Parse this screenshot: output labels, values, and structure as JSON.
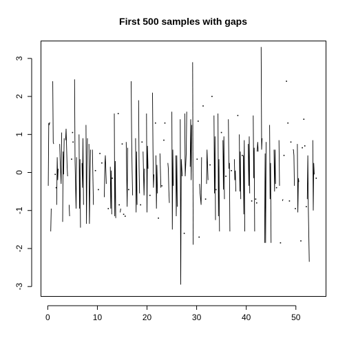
{
  "chart_data": {
    "type": "line",
    "title": "First 500 samples with gaps",
    "xlabel": "",
    "ylabel": "",
    "xlim": [
      -1.3,
      56.0
    ],
    "ylim": [
      -3.25,
      3.45
    ],
    "x_ticks": [
      0,
      10,
      20,
      30,
      40,
      50
    ],
    "y_ticks": [
      -3,
      -2,
      -1,
      0,
      1,
      2,
      3
    ],
    "grid": false,
    "legend": "none",
    "segments": [
      [
        [
          0.1,
          -0.35
        ],
        [
          0.2,
          1.3
        ],
        [
          0.3,
          1.25
        ],
        [
          0.4,
          1.32
        ]
      ],
      [
        [
          0.6,
          -1.55
        ],
        [
          0.7,
          -0.95
        ]
      ],
      [
        [
          1.0,
          2.4
        ],
        [
          1.1,
          0.8
        ],
        [
          1.2,
          0.75
        ]
      ],
      [
        [
          1.8,
          -0.85
        ],
        [
          1.9,
          0.4
        ],
        [
          2.0,
          -0.2
        ],
        [
          2.1,
          0.1
        ]
      ],
      [
        [
          2.4,
          0.75
        ],
        [
          2.5,
          0.3
        ],
        [
          2.7,
          -0.3
        ],
        [
          2.8,
          1.05
        ]
      ],
      [
        [
          3.0,
          -1.3
        ],
        [
          3.1,
          0.55
        ],
        [
          3.2,
          -0.05
        ],
        [
          3.3,
          0.9
        ]
      ],
      [
        [
          3.6,
          0.85
        ],
        [
          3.7,
          1.15
        ],
        [
          3.9,
          0.15
        ],
        [
          4.0,
          -0.1
        ]
      ],
      [
        [
          4.3,
          -0.85
        ],
        [
          4.4,
          -1.15
        ]
      ],
      [
        [
          5.4,
          2.45
        ],
        [
          5.5,
          0.3
        ],
        [
          5.7,
          -0.95
        ],
        [
          5.8,
          0.4
        ]
      ],
      [
        [
          6.3,
          1.0
        ],
        [
          6.4,
          -0.95
        ],
        [
          6.5,
          0.35
        ],
        [
          6.6,
          -1.45
        ]
      ],
      [
        [
          6.9,
          0.25
        ],
        [
          7.0,
          -0.4
        ],
        [
          7.1,
          0.9
        ],
        [
          7.2,
          -0.85
        ]
      ],
      [
        [
          7.7,
          1.25
        ],
        [
          7.8,
          -1.35
        ],
        [
          7.9,
          0.15
        ],
        [
          8.0,
          0.9
        ]
      ],
      [
        [
          8.3,
          0.75
        ],
        [
          8.4,
          -1.35
        ],
        [
          8.6,
          0.6
        ]
      ],
      [
        [
          9.0,
          0.6
        ],
        [
          9.2,
          -0.85
        ]
      ],
      [
        [
          11.4,
          -0.65
        ],
        [
          11.5,
          0.2
        ],
        [
          11.6,
          0.45
        ],
        [
          11.8,
          -0.3
        ]
      ],
      [
        [
          12.6,
          0.15
        ],
        [
          12.7,
          -0.95
        ],
        [
          12.8,
          0.05
        ],
        [
          12.9,
          -1.1
        ]
      ],
      [
        [
          13.4,
          1.55
        ],
        [
          13.5,
          -1.15
        ],
        [
          13.6,
          0.3
        ],
        [
          13.7,
          -1.2
        ]
      ],
      [
        [
          14.6,
          -1.05
        ],
        [
          14.7,
          -0.95
        ]
      ],
      [
        [
          15.8,
          0.8
        ],
        [
          16.0,
          -0.9
        ],
        [
          16.1,
          0.65
        ]
      ],
      [
        [
          16.8,
          2.4
        ],
        [
          16.9,
          0.9
        ],
        [
          17.0,
          0.05
        ],
        [
          17.1,
          -0.6
        ]
      ],
      [
        [
          17.7,
          0.9
        ],
        [
          17.8,
          -1.05
        ],
        [
          17.9,
          0.55
        ],
        [
          18.0,
          -0.85
        ]
      ],
      [
        [
          18.3,
          1.9
        ],
        [
          18.4,
          0.15
        ],
        [
          18.5,
          -0.55
        ]
      ],
      [
        [
          19.2,
          0.55
        ],
        [
          19.3,
          -0.05
        ],
        [
          19.4,
          -0.6
        ],
        [
          19.5,
          0.1
        ]
      ],
      [
        [
          19.9,
          1.55
        ],
        [
          20.0,
          -1.05
        ],
        [
          20.1,
          0.7
        ],
        [
          20.2,
          0.1
        ]
      ],
      [
        [
          21.1,
          2.1
        ],
        [
          21.2,
          0.6
        ],
        [
          21.3,
          -0.4
        ],
        [
          21.4,
          -0.05
        ]
      ],
      [
        [
          21.8,
          0.45
        ],
        [
          21.9,
          -0.95
        ],
        [
          22.0,
          0.2
        ],
        [
          22.1,
          -0.55
        ]
      ],
      [
        [
          22.6,
          0.5
        ],
        [
          22.8,
          -0.4
        ]
      ],
      [
        [
          24.2,
          0.25
        ],
        [
          24.3,
          0.1
        ],
        [
          24.4,
          -0.45
        ],
        [
          24.5,
          -0.8
        ]
      ],
      [
        [
          25.0,
          1.6
        ],
        [
          25.1,
          -1.5
        ],
        [
          25.2,
          0.6
        ],
        [
          25.3,
          -0.35
        ]
      ],
      [
        [
          25.8,
          0.45
        ],
        [
          25.9,
          -1.15
        ],
        [
          26.0,
          0.45
        ],
        [
          26.1,
          -0.9
        ]
      ],
      [
        [
          26.7,
          1.4
        ],
        [
          26.8,
          -2.95
        ],
        [
          26.9,
          0.35
        ],
        [
          27.1,
          -0.1
        ]
      ],
      [
        [
          27.6,
          1.55
        ],
        [
          27.7,
          -0.1
        ],
        [
          27.9,
          0.5
        ],
        [
          28.0,
          1.6
        ]
      ],
      [
        [
          28.7,
          0.15
        ],
        [
          28.8,
          1.4
        ],
        [
          28.9,
          -0.2
        ],
        [
          29.0,
          1.25
        ]
      ],
      [
        [
          29.2,
          2.9
        ],
        [
          29.3,
          -1.9
        ]
      ],
      [
        [
          30.6,
          -0.3
        ],
        [
          30.7,
          -0.55
        ],
        [
          30.9,
          -0.85
        ],
        [
          31.0,
          0.4
        ]
      ],
      [
        [
          32.0,
          -0.3
        ],
        [
          32.1,
          0.6
        ],
        [
          32.3,
          -0.2
        ]
      ],
      [
        [
          33.5,
          1.5
        ],
        [
          33.6,
          -0.55
        ],
        [
          33.7,
          0.95
        ],
        [
          33.8,
          -1.25
        ]
      ],
      [
        [
          34.3,
          1.55
        ],
        [
          34.4,
          -1.15
        ],
        [
          34.5,
          0.35
        ],
        [
          34.6,
          -1.55
        ]
      ],
      [
        [
          35.3,
          0.85
        ],
        [
          35.4,
          -0.45
        ],
        [
          35.5,
          0.95
        ],
        [
          35.6,
          -0.7
        ]
      ],
      [
        [
          36.4,
          1.4
        ],
        [
          36.5,
          0.1
        ],
        [
          36.6,
          0.25
        ],
        [
          36.7,
          -1.55
        ]
      ],
      [
        [
          37.6,
          0.35
        ],
        [
          37.7,
          -0.2
        ],
        [
          37.8,
          0.05
        ],
        [
          37.9,
          -0.5
        ]
      ],
      [
        [
          38.6,
          1.0
        ],
        [
          38.7,
          -0.5
        ],
        [
          38.8,
          0.55
        ],
        [
          38.9,
          -0.7
        ]
      ],
      [
        [
          39.4,
          0.45
        ],
        [
          39.5,
          -1.1
        ],
        [
          39.6,
          0.85
        ],
        [
          39.7,
          -1.55
        ]
      ],
      [
        [
          40.4,
          0.75
        ],
        [
          40.5,
          -0.35
        ],
        [
          40.6,
          0.95
        ],
        [
          40.7,
          -0.55
        ]
      ],
      [
        [
          41.4,
          1.5
        ],
        [
          41.5,
          -0.15
        ],
        [
          41.6,
          0.65
        ],
        [
          41.7,
          -1.55
        ]
      ],
      [
        [
          42.2,
          0.55
        ],
        [
          42.3,
          0.8
        ],
        [
          42.4,
          0.55
        ]
      ],
      [
        [
          43.0,
          3.3
        ],
        [
          43.1,
          0.6
        ],
        [
          43.2,
          0.9
        ]
      ],
      [
        [
          43.7,
          -1.85
        ],
        [
          43.8,
          0.5
        ],
        [
          43.9,
          -1.85
        ],
        [
          44.0,
          0.8
        ]
      ],
      [
        [
          44.7,
          1.25
        ],
        [
          44.8,
          -0.7
        ],
        [
          44.9,
          0.25
        ],
        [
          45.0,
          -1.85
        ]
      ],
      [
        [
          45.6,
          0.6
        ],
        [
          45.7,
          -0.5
        ],
        [
          45.8,
          0.6
        ],
        [
          45.9,
          -0.3
        ]
      ],
      [
        [
          46.6,
          0.85
        ],
        [
          46.7,
          -0.35
        ]
      ],
      [
        [
          47.3,
          -0.75
        ],
        [
          47.4,
          -0.7
        ]
      ],
      [
        [
          49.4,
          0.6
        ],
        [
          49.5,
          0.6
        ],
        [
          49.6,
          0.45
        ],
        [
          49.7,
          -0.35
        ]
      ],
      [
        [
          50.3,
          0.75
        ],
        [
          50.4,
          -1.05
        ],
        [
          50.5,
          -0.15
        ],
        [
          50.6,
          -0.25
        ]
      ],
      [
        [
          52.3,
          -0.7
        ],
        [
          52.4,
          0.45
        ],
        [
          52.5,
          -0.9
        ],
        [
          52.7,
          -2.35
        ]
      ],
      [
        [
          53.4,
          0.85
        ],
        [
          53.5,
          -1.0
        ],
        [
          53.6,
          0.25
        ],
        [
          53.7,
          -0.05
        ]
      ]
    ],
    "points": [
      [
        1.5,
        -0.05
      ],
      [
        1.7,
        -0.4
      ],
      [
        4.8,
        0.35
      ],
      [
        5.0,
        1.05
      ],
      [
        5.1,
        0.8
      ],
      [
        9.6,
        0.05
      ],
      [
        10.2,
        -0.45
      ],
      [
        10.5,
        0.5
      ],
      [
        10.9,
        0.25
      ],
      [
        12.2,
        -0.95
      ],
      [
        13.0,
        -0.15
      ],
      [
        14.2,
        1.55
      ],
      [
        14.4,
        -0.85
      ],
      [
        15.0,
        0.75
      ],
      [
        15.3,
        -1.1
      ],
      [
        15.6,
        -1.15
      ],
      [
        16.3,
        -0.45
      ],
      [
        18.7,
        -0.85
      ],
      [
        19.0,
        0.8
      ],
      [
        20.6,
        -0.6
      ],
      [
        21.7,
        1.3
      ],
      [
        22.3,
        -1.2
      ],
      [
        23.0,
        -0.35
      ],
      [
        23.4,
        0.85
      ],
      [
        23.6,
        1.3
      ],
      [
        27.5,
        -1.6
      ],
      [
        30.1,
        0.35
      ],
      [
        30.3,
        1.35
      ],
      [
        30.5,
        -1.7
      ],
      [
        31.3,
        1.75
      ],
      [
        31.8,
        -0.7
      ],
      [
        32.7,
        0.2
      ],
      [
        33.1,
        2.0
      ],
      [
        33.9,
        -0.45
      ],
      [
        35.0,
        1.05
      ],
      [
        35.9,
        -0.1
      ],
      [
        37.0,
        0.05
      ],
      [
        38.3,
        1.5
      ],
      [
        39.2,
        0.45
      ],
      [
        41.1,
        -0.75
      ],
      [
        41.9,
        -0.7
      ],
      [
        42.1,
        -0.8
      ],
      [
        46.1,
        -0.4
      ],
      [
        46.9,
        -1.85
      ],
      [
        47.6,
        0.45
      ],
      [
        48.1,
        2.4
      ],
      [
        48.4,
        1.3
      ],
      [
        48.7,
        -0.75
      ],
      [
        49.0,
        0.8
      ],
      [
        49.9,
        -0.95
      ],
      [
        51.0,
        -1.8
      ],
      [
        51.3,
        0.65
      ],
      [
        51.6,
        1.4
      ],
      [
        51.8,
        0.7
      ],
      [
        52.1,
        -0.9
      ],
      [
        54.1,
        -0.15
      ]
    ]
  }
}
